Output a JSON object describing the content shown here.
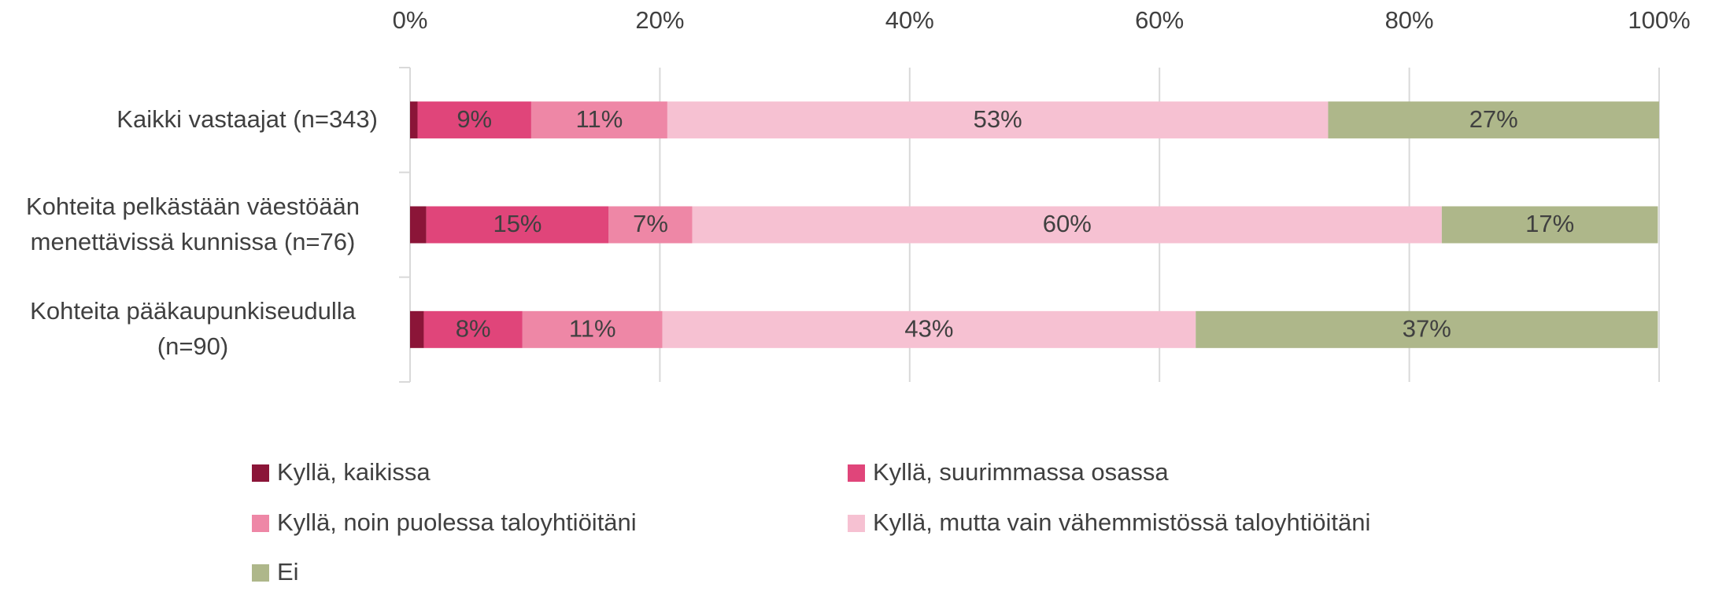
{
  "chart_data": {
    "type": "stacked-bar-horizontal",
    "categories": [
      "Kaikki vastaajat (n=343)",
      "Kohteita pelkästään väestöään menettävissä kunnissa (n=76)",
      "Kohteita pääkaupunkiseudulla (n=90)"
    ],
    "series": [
      {
        "name": "Kyllä, kaikissa",
        "color": "#8b1538",
        "values": [
          0.6,
          1.3,
          1.1
        ],
        "value_labels": [
          null,
          null,
          null
        ]
      },
      {
        "name": "Kyllä, suurimmassa osassa",
        "color": "#e0457a",
        "values": [
          9.1,
          14.6,
          7.9
        ],
        "value_labels": [
          "9%",
          "15%",
          "8%"
        ]
      },
      {
        "name": "Kyllä, noin puolessa taloyhtiöitäni",
        "color": "#ee87a6",
        "values": [
          10.9,
          6.7,
          11.2
        ],
        "value_labels": [
          "11%",
          "7%",
          "11%"
        ]
      },
      {
        "name": "Kyllä, mutta vain vähemmistössä taloyhtiöitäni",
        "color": "#f6c1d2",
        "values": [
          52.9,
          60.0,
          42.7
        ],
        "value_labels": [
          "53%",
          "60%",
          "43%"
        ]
      },
      {
        "name": "Ei",
        "color": "#aeb78a",
        "values": [
          26.5,
          17.3,
          37.0
        ],
        "value_labels": [
          "27%",
          "17%",
          "37%"
        ]
      }
    ],
    "xlim": [
      0,
      100
    ],
    "xticks": [
      {
        "value": 0,
        "label": "0%"
      },
      {
        "value": 20,
        "label": "20%"
      },
      {
        "value": 40,
        "label": "40%"
      },
      {
        "value": 60,
        "label": "60%"
      },
      {
        "value": 80,
        "label": "80%"
      },
      {
        "value": 100,
        "label": "100%"
      }
    ],
    "grid": true,
    "legend": "bottom"
  }
}
